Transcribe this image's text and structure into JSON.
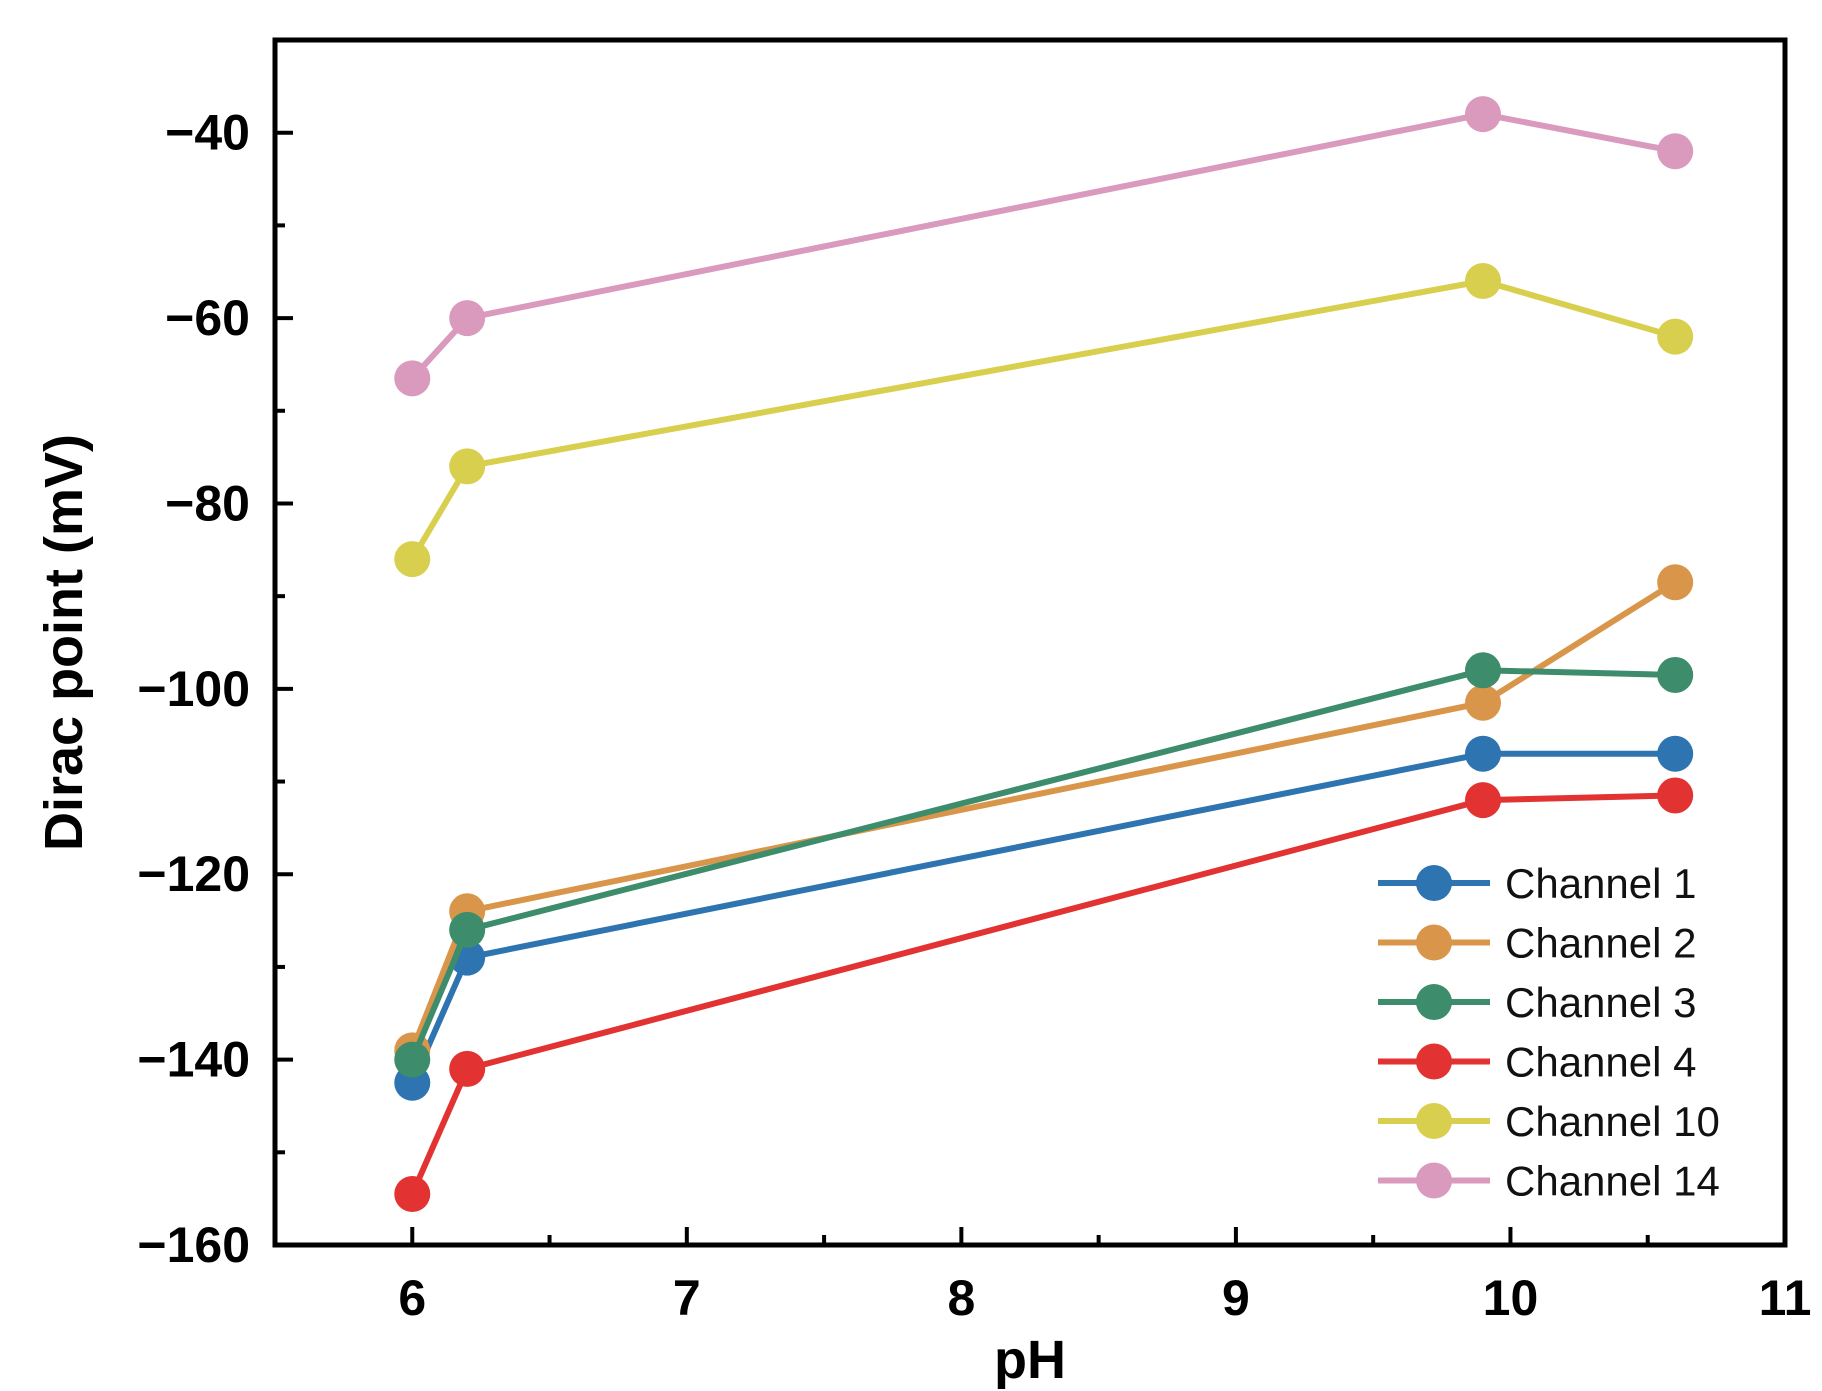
{
  "chart_data": {
    "type": "line",
    "title": "",
    "xlabel": "pH",
    "ylabel": "Dirac point (mV)",
    "xlim": [
      5.5,
      11
    ],
    "ylim": [
      -160,
      -30
    ],
    "xticks": [
      6,
      7,
      8,
      9,
      10,
      11
    ],
    "xtick_labels": [
      "6",
      "7",
      "8",
      "9",
      "10",
      "11"
    ],
    "yticks": [
      -160,
      -140,
      -120,
      -100,
      -80,
      -60,
      -40
    ],
    "ytick_labels": [
      "−160",
      "−140",
      "−120",
      "−100",
      "−80",
      "−60",
      "−40"
    ],
    "grid": false,
    "legend_position": "bottom-right",
    "x": [
      6.0,
      6.2,
      9.9,
      10.6
    ],
    "series": [
      {
        "name": "Channel 1",
        "color": "#2e74b0",
        "values": [
          -142.5,
          -129,
          -107,
          -107
        ]
      },
      {
        "name": "Channel 2",
        "color": "#d9964a",
        "values": [
          -139,
          -124,
          -101.5,
          -88.5
        ]
      },
      {
        "name": "Channel 3",
        "color": "#3d8c6c",
        "values": [
          -140,
          -126,
          -98,
          -98.5
        ]
      },
      {
        "name": "Channel 4",
        "color": "#e23232",
        "values": [
          -154.5,
          -141,
          -112,
          -111.5
        ]
      },
      {
        "name": "Channel 10",
        "color": "#d9cf4e",
        "values": [
          -86,
          -76,
          -56,
          -62
        ]
      },
      {
        "name": "Channel 14",
        "color": "#d99abd",
        "values": [
          -66.5,
          -60,
          -38,
          -42
        ]
      }
    ]
  }
}
